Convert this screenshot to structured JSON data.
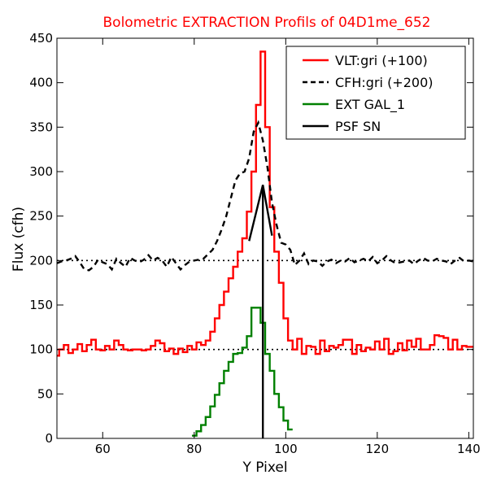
{
  "chart_data": {
    "type": "line",
    "title": "Bolometric EXTRACTION Profils of 04D1me_652",
    "title_color": "#ff0000",
    "xlabel": "Y Pixel",
    "ylabel": "Flux (cfh)",
    "xlim": [
      50,
      141
    ],
    "ylim": [
      0,
      450
    ],
    "xticks": [
      60,
      80,
      100,
      120,
      140
    ],
    "yticks": [
      0,
      50,
      100,
      150,
      200,
      250,
      300,
      350,
      400,
      450
    ],
    "xtick_labels": [
      "60",
      "80",
      "100",
      "120",
      "140"
    ],
    "ytick_labels": [
      "0",
      "50",
      "100",
      "150",
      "200",
      "250",
      "300",
      "350",
      "400",
      "450"
    ],
    "grid": false,
    "legend_position": "top-right",
    "reference_lines": [
      {
        "y": 100,
        "style": "dotted",
        "color": "#000000"
      },
      {
        "y": 200,
        "style": "dotted",
        "color": "#000000"
      }
    ],
    "series": [
      {
        "name": "VLT:gri (+100)",
        "color": "#ff0000",
        "style": "steps",
        "x": [
          50,
          51,
          52,
          53,
          54,
          55,
          56,
          57,
          58,
          59,
          60,
          61,
          62,
          63,
          64,
          65,
          66,
          67,
          68,
          69,
          70,
          71,
          72,
          73,
          74,
          75,
          76,
          77,
          78,
          79,
          80,
          81,
          82,
          83,
          84,
          85,
          86,
          87,
          88,
          89,
          90,
          91,
          92,
          93,
          94,
          95,
          96,
          97,
          98,
          99,
          100,
          101,
          102,
          103,
          104,
          105,
          106,
          107,
          108,
          109,
          110,
          111,
          112,
          113,
          114,
          115,
          116,
          117,
          118,
          119,
          120,
          121,
          122,
          123,
          124,
          125,
          126,
          127,
          128,
          129,
          130,
          131,
          132,
          133,
          134,
          135,
          136,
          137,
          138,
          139,
          140,
          141
        ],
        "values": [
          93,
          100,
          105,
          96,
          100,
          106,
          98,
          105,
          111,
          100,
          99,
          104,
          100,
          110,
          105,
          100,
          99,
          100,
          100,
          99,
          100,
          104,
          110,
          107,
          98,
          101,
          95,
          101,
          97,
          104,
          100,
          108,
          105,
          110,
          120,
          135,
          150,
          165,
          180,
          193,
          210,
          225,
          255,
          300,
          375,
          435,
          350,
          260,
          210,
          175,
          135,
          110,
          100,
          112,
          95,
          104,
          103,
          95,
          110,
          98,
          104,
          102,
          105,
          111,
          111,
          95,
          105,
          98,
          102,
          100,
          109,
          100,
          112,
          95,
          98,
          107,
          99,
          110,
          103,
          112,
          100,
          100,
          105,
          116,
          115,
          113,
          100,
          111,
          100,
          104,
          103,
          103
        ]
      },
      {
        "name": "CFH:gri (+200)",
        "color": "#000000",
        "style": "dashed",
        "x": [
          50,
          51,
          52,
          53,
          54,
          55,
          56,
          57,
          58,
          59,
          60,
          61,
          62,
          63,
          64,
          65,
          66,
          67,
          68,
          69,
          70,
          71,
          72,
          73,
          74,
          75,
          76,
          77,
          78,
          79,
          80,
          81,
          82,
          83,
          84,
          85,
          86,
          87,
          88,
          89,
          90,
          91,
          92,
          93,
          94,
          95,
          96,
          97,
          98,
          99,
          100,
          101,
          102,
          103,
          104,
          105,
          106,
          107,
          108,
          109,
          110,
          111,
          112,
          113,
          114,
          115,
          116,
          117,
          118,
          119,
          120,
          121,
          122,
          123,
          124,
          125,
          126,
          127,
          128,
          129,
          130,
          131,
          132,
          133,
          134,
          135,
          136,
          137,
          138,
          139,
          140,
          141
        ],
        "values": [
          197,
          199,
          200,
          202,
          205,
          198,
          190,
          189,
          193,
          201,
          198,
          196,
          190,
          202,
          197,
          193,
          203,
          200,
          198,
          201,
          206,
          200,
          203,
          200,
          193,
          204,
          197,
          190,
          195,
          199,
          200,
          201,
          202,
          207,
          212,
          222,
          235,
          250,
          270,
          290,
          298,
          300,
          315,
          345,
          355,
          335,
          305,
          265,
          240,
          220,
          218,
          212,
          195,
          200,
          208,
          196,
          200,
          199,
          194,
          199,
          201,
          197,
          200,
          199,
          203,
          198,
          200,
          202,
          199,
          204,
          197,
          200,
          205,
          200,
          197,
          198,
          199,
          200,
          196,
          200,
          203,
          200,
          199,
          202,
          200,
          199,
          196,
          200,
          203,
          199,
          200,
          199
        ]
      },
      {
        "name": "EXT GAL_1",
        "color": "#008000",
        "style": "steps",
        "x": [
          80,
          81,
          82,
          83,
          84,
          85,
          86,
          87,
          88,
          89,
          90,
          91,
          92,
          93,
          94,
          95,
          96,
          97,
          98,
          99,
          100,
          101
        ],
        "values": [
          3,
          8,
          15,
          24,
          36,
          49,
          62,
          76,
          86,
          95,
          96,
          102,
          115,
          147,
          147,
          130,
          95,
          76,
          50,
          35,
          20,
          10
        ]
      },
      {
        "name": "PSF SN",
        "color": "#000000",
        "style": "solid",
        "x": [
          92,
          95,
          97
        ],
        "values": [
          222,
          285,
          228
        ]
      }
    ],
    "vertical_marker": {
      "x": 95,
      "y_top": 282,
      "color": "#000000"
    }
  }
}
